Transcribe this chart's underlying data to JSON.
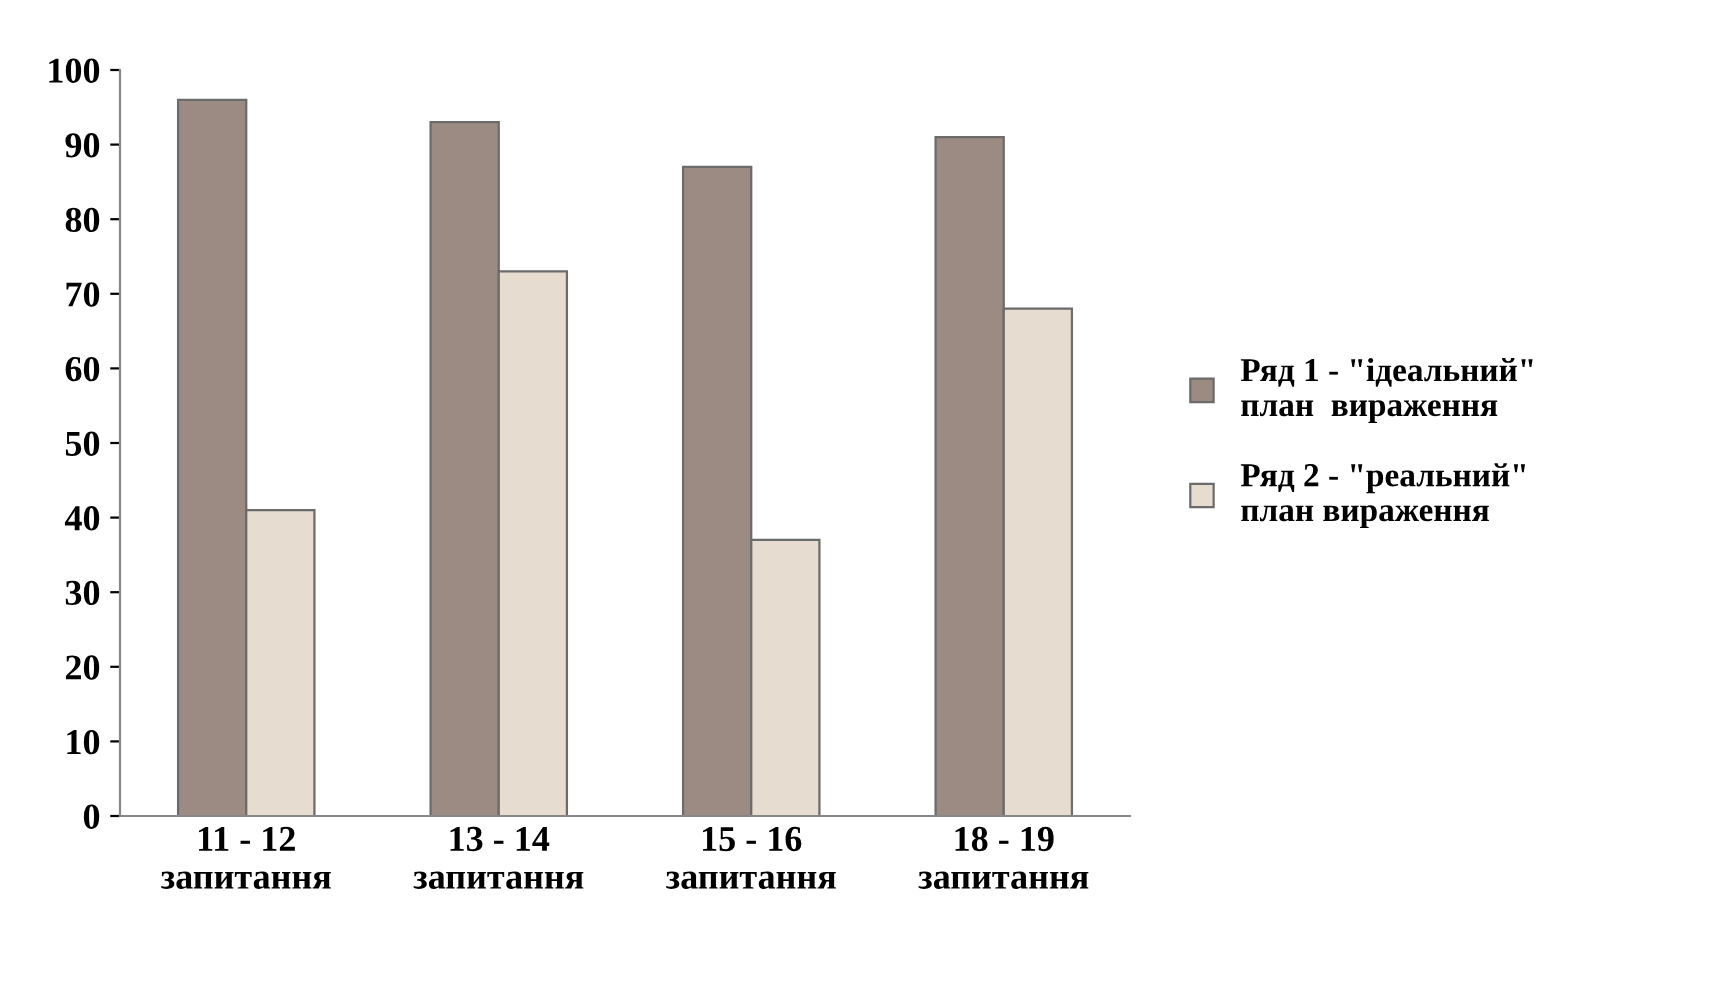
{
  "chart_data": {
    "type": "bar",
    "categories": [
      "11 - 12\nзапитання",
      "13 - 14\nзапитання",
      "15 - 16\nзапитання",
      "18 - 19\nзапитання"
    ],
    "series": [
      {
        "name": "Ряд 1 - \"ідеальний\"\nплан  вираження",
        "color": "#9b8b82",
        "values": [
          96,
          93,
          87,
          91
        ]
      },
      {
        "name": "Ряд 2 - \"реальний\"\nплан вираження",
        "color": "#e6ddd0",
        "values": [
          41,
          73,
          37,
          68
        ]
      }
    ],
    "ylim": [
      0,
      100
    ],
    "yticks": [
      0,
      10,
      20,
      30,
      40,
      50,
      60,
      70,
      80,
      90,
      100
    ],
    "grid": false,
    "legend": "right"
  }
}
